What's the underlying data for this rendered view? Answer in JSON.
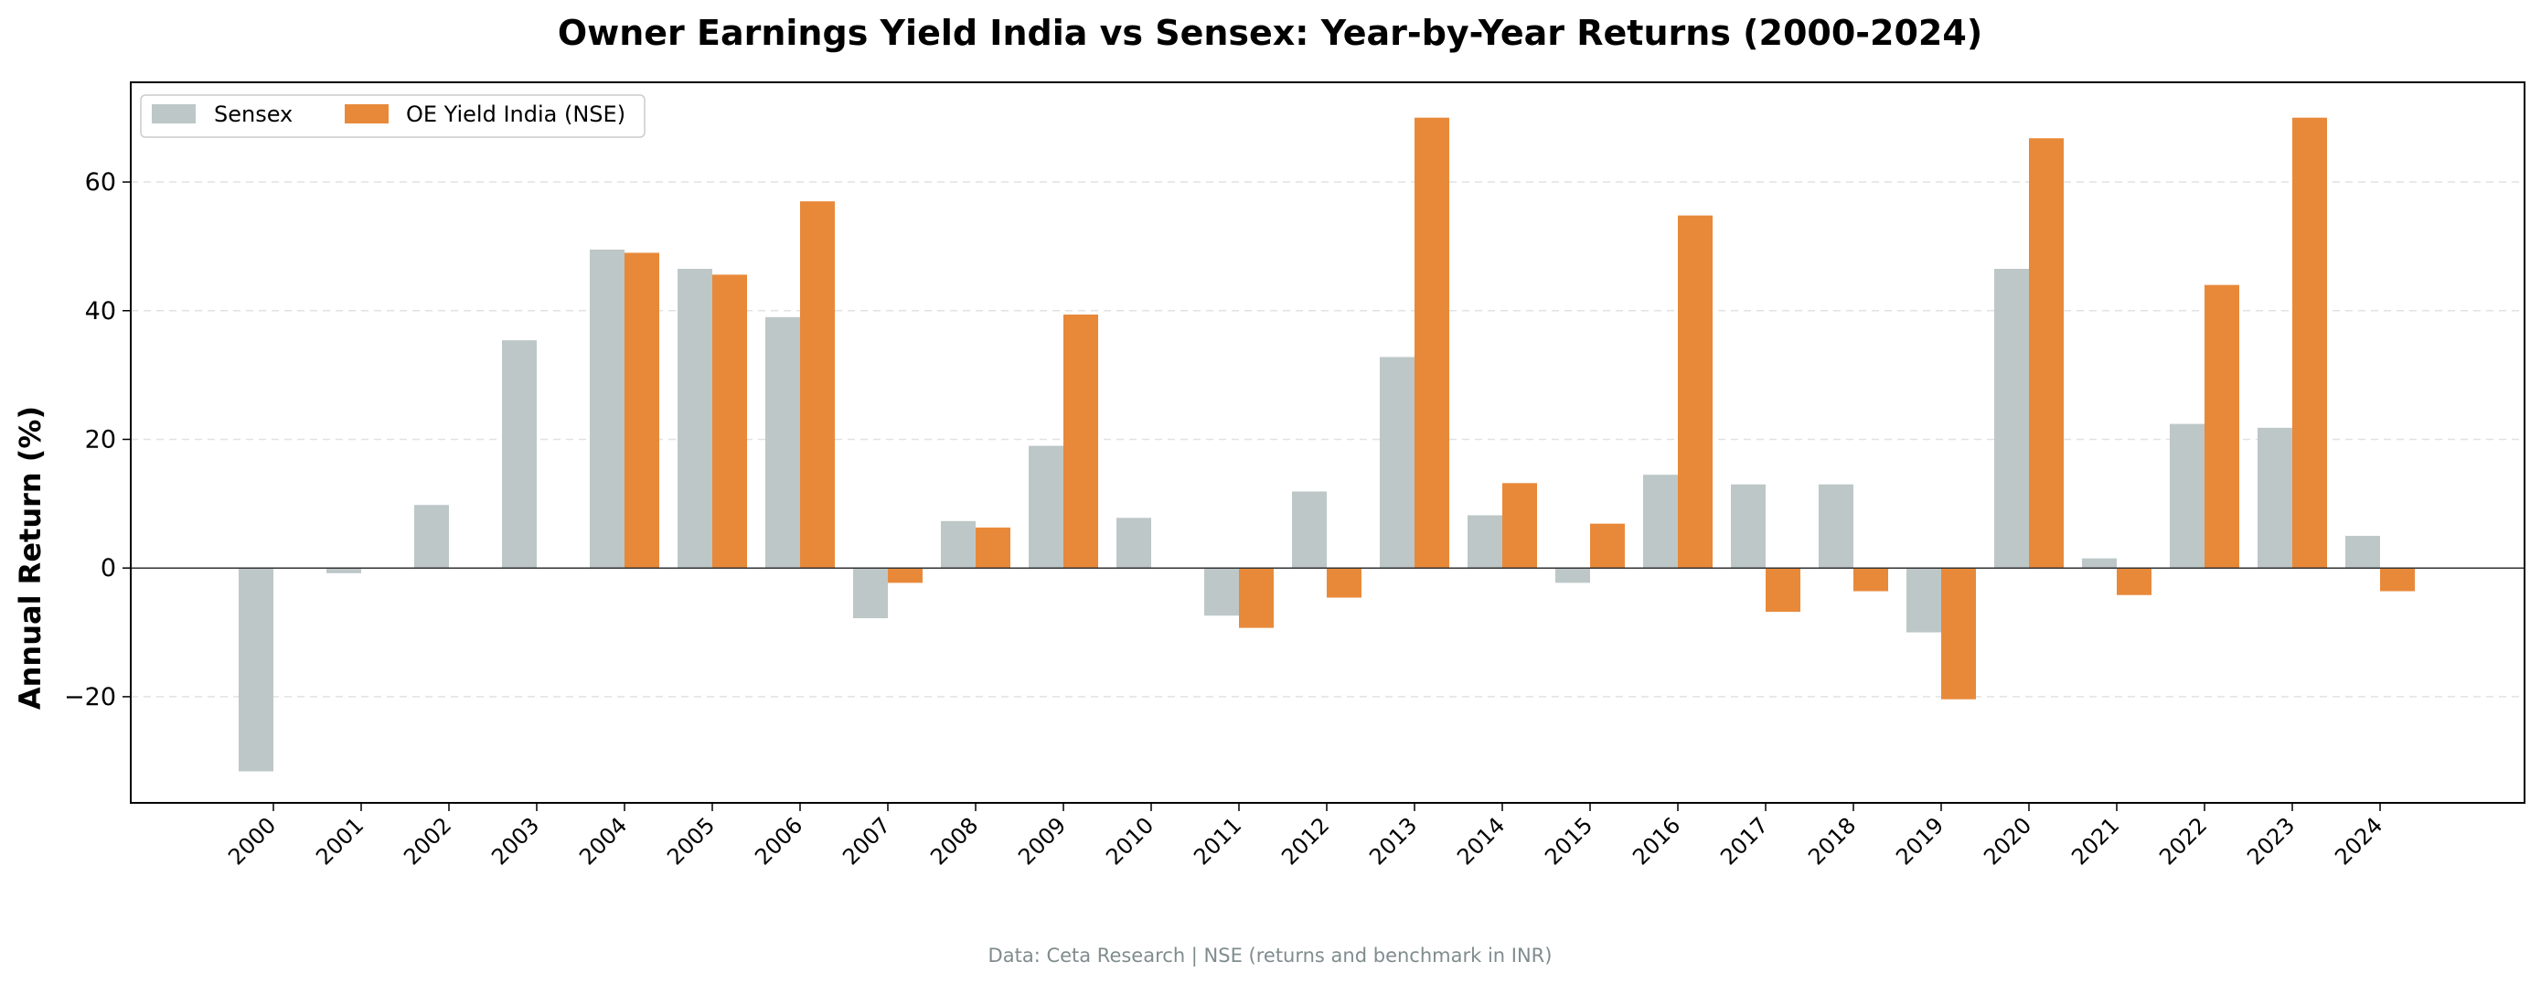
{
  "chart_data": {
    "type": "bar",
    "title": "Owner Earnings Yield India vs Sensex: Year-by-Year Returns (2000-2024)",
    "xlabel": "",
    "ylabel": "Annual Return (%)",
    "ylim": [
      -36.5,
      75.5
    ],
    "yticks": [
      -20,
      0,
      20,
      40,
      60
    ],
    "ytick_labels": [
      "−20",
      "0",
      "20",
      "40",
      "60"
    ],
    "grid": "horizontal dashed",
    "legend_position": "top-left",
    "categories": [
      "2000",
      "2001",
      "2002",
      "2003",
      "2004",
      "2005",
      "2006",
      "2007",
      "2008",
      "2009",
      "2010",
      "2011",
      "2012",
      "2013",
      "2014",
      "2015",
      "2016",
      "2017",
      "2018",
      "2019",
      "2020",
      "2021",
      "2022",
      "2023",
      "2024"
    ],
    "series": [
      {
        "name": "Sensex",
        "color": "#bdc7c7",
        "values": [
          -31.6,
          -0.8,
          9.8,
          35.4,
          49.5,
          46.5,
          39.0,
          -7.8,
          7.3,
          19.0,
          7.8,
          -7.4,
          11.9,
          32.8,
          8.2,
          -2.3,
          14.5,
          13.0,
          13.0,
          -10.0,
          46.5,
          1.5,
          22.4,
          21.8,
          5.0
        ]
      },
      {
        "name": "OE Yield India (NSE)",
        "color": "#e8893a",
        "values": [
          null,
          null,
          null,
          null,
          49.0,
          45.6,
          57.0,
          -2.3,
          6.3,
          39.4,
          null,
          -9.3,
          -4.6,
          70.0,
          13.2,
          6.9,
          54.8,
          -6.8,
          -3.6,
          -20.4,
          66.8,
          -4.2,
          44.0,
          70.0,
          -3.6
        ]
      }
    ],
    "source_note": "Data: Ceta Research | NSE (returns and benchmark in INR)"
  }
}
